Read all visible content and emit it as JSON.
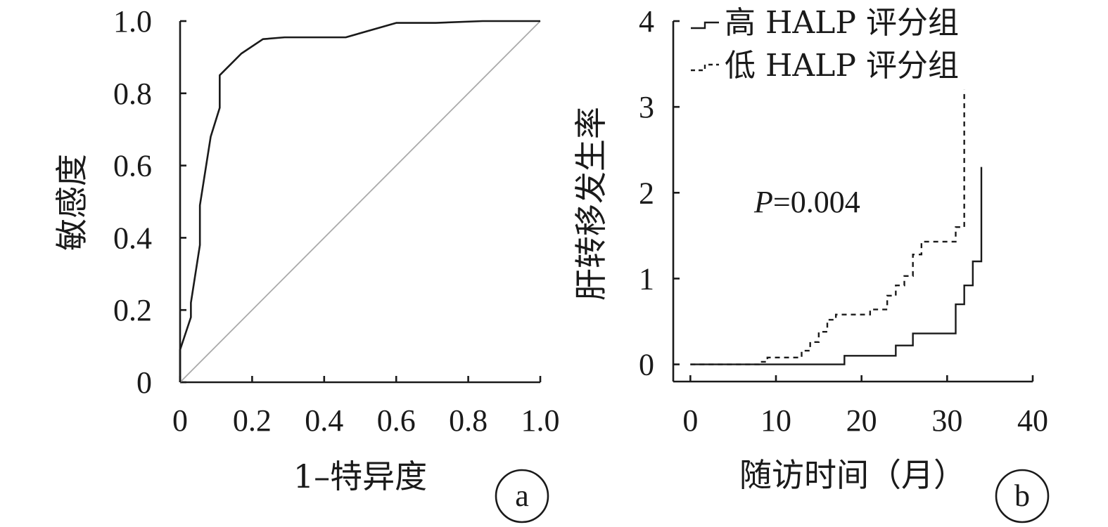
{
  "chart_data": [
    {
      "type": "line",
      "panel_label": "a",
      "xlabel": "1–特异度",
      "ylabel": "敏感度",
      "xlim": [
        0,
        1.0
      ],
      "ylim": [
        0,
        1.0
      ],
      "x_ticks": [
        "0",
        "0.2",
        "0.4",
        "0.6",
        "0.8",
        "1.0"
      ],
      "y_ticks": [
        "0",
        "0.2",
        "0.4",
        "0.6",
        "0.8",
        "1.0"
      ],
      "grid": false,
      "series": [
        {
          "style": "solid",
          "color": "#1a1a1a",
          "x": [
            0,
            0,
            0.03,
            0.03,
            0.055,
            0.055,
            0.085,
            0.11,
            0.11,
            0.14,
            0.17,
            0.23,
            0.29,
            0.46,
            0.6,
            0.71,
            0.84,
            1.0
          ],
          "y": [
            0,
            0.09,
            0.18,
            0.22,
            0.38,
            0.49,
            0.68,
            0.76,
            0.85,
            0.88,
            0.91,
            0.95,
            0.955,
            0.955,
            0.995,
            0.995,
            1.0,
            1.0
          ]
        },
        {
          "style": "diagonal-reference",
          "color": "#aaaaaa",
          "x": [
            0,
            1.0
          ],
          "y": [
            0,
            1.0
          ]
        }
      ]
    },
    {
      "type": "line",
      "panel_label": "b",
      "xlabel": "随访时间（月）",
      "ylabel": "肝转移发生率",
      "xlim": [
        -2,
        40
      ],
      "ylim": [
        -0.2,
        4
      ],
      "x_ticks": [
        "0",
        "10",
        "20",
        "30",
        "40"
      ],
      "y_ticks": [
        "0",
        "1",
        "2",
        "3",
        "4"
      ],
      "annotation": {
        "prefix": "P",
        "value": "=0.004"
      },
      "legend": {
        "position": "top-left"
      },
      "grid": false,
      "series": [
        {
          "name": "高 HALP 评分组",
          "style": "solid",
          "color": "#1a1a1a",
          "x": [
            0,
            18,
            24,
            26,
            31,
            32,
            33,
            34,
            34
          ],
          "y": [
            0,
            0.1,
            0.22,
            0.36,
            0.7,
            0.92,
            1.2,
            2.3,
            2.3
          ]
        },
        {
          "name": "低 HALP 评分组",
          "style": "dashed",
          "color": "#1a1a1a",
          "x": [
            0,
            8,
            9,
            13,
            14,
            15,
            16,
            17,
            21,
            23,
            24,
            25,
            26,
            27,
            31,
            32,
            32
          ],
          "y": [
            0,
            0.03,
            0.08,
            0.16,
            0.26,
            0.38,
            0.52,
            0.58,
            0.64,
            0.8,
            0.92,
            1.03,
            1.28,
            1.43,
            1.6,
            3.2,
            3.2
          ]
        }
      ]
    }
  ]
}
